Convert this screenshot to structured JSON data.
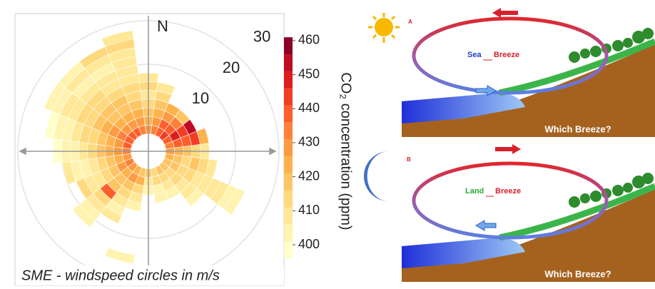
{
  "chart_data": {
    "type": "polar-heatmap",
    "north_label": "N",
    "caption": "SME - windspeed circles in m/s",
    "colorbar_label": "CO₂ concentration (ppm)",
    "rticks": [
      10,
      20,
      30
    ],
    "clim": [
      396,
      461
    ],
    "cticks": [
      400,
      410,
      420,
      430,
      440,
      450,
      460
    ],
    "colors": [
      "#ffffcc",
      "#fff3b0",
      "#ffe897",
      "#fed97e",
      "#fec565",
      "#feb24c",
      "#fd9a42",
      "#fd8138",
      "#fc5e2c",
      "#f23d23",
      "#dd1e1f",
      "#c00b24",
      "#8c0026"
    ],
    "directions": [
      0,
      15,
      30,
      45,
      60,
      75,
      90,
      105,
      120,
      135,
      150,
      165,
      180,
      195,
      210,
      225,
      240,
      255,
      270,
      285,
      300,
      315,
      330,
      345
    ],
    "r_bins": [
      4,
      6,
      8,
      10,
      12,
      14,
      16,
      18,
      20,
      22,
      24,
      26,
      28
    ],
    "values": [
      [
        430,
        425,
        420,
        415,
        410,
        412,
        408,
        null,
        null,
        null,
        null,
        null
      ],
      [
        435,
        430,
        425,
        420,
        415,
        410,
        null,
        null,
        null,
        null,
        null,
        null
      ],
      [
        440,
        438,
        430,
        425,
        null,
        null,
        null,
        null,
        null,
        null,
        null,
        null
      ],
      [
        445,
        440,
        432,
        420,
        null,
        null,
        null,
        null,
        null,
        null,
        null,
        null
      ],
      [
        440,
        448,
        445,
        452,
        null,
        null,
        null,
        null,
        null,
        null,
        null,
        null
      ],
      [
        435,
        440,
        438,
        445,
        425,
        null,
        null,
        null,
        null,
        null,
        null,
        null
      ],
      [
        430,
        425,
        420,
        415,
        410,
        null,
        null,
        null,
        null,
        null,
        null,
        null
      ],
      [
        425,
        420,
        415,
        418,
        412,
        410,
        null,
        null,
        null,
        null,
        null,
        null
      ],
      [
        420,
        418,
        415,
        412,
        410,
        408,
        406,
        410,
        404,
        402,
        null,
        null
      ],
      [
        418,
        415,
        412,
        410,
        408,
        405,
        null,
        null,
        null,
        null,
        null,
        null
      ],
      [
        420,
        415,
        410,
        405,
        null,
        null,
        null,
        null,
        null,
        null,
        null,
        null
      ],
      [
        415,
        412,
        405,
        402,
        null,
        null,
        null,
        null,
        null,
        null,
        null,
        null
      ],
      [
        418,
        410,
        405,
        null,
        null,
        null,
        null,
        null,
        null,
        null,
        null,
        null
      ],
      [
        420,
        425,
        415,
        410,
        405,
        null,
        null,
        null,
        null,
        null,
        405,
        null
      ],
      [
        425,
        430,
        420,
        415,
        410,
        405,
        408,
        null,
        null,
        null,
        null,
        null
      ],
      [
        430,
        425,
        420,
        418,
        438,
        412,
        410,
        405,
        402,
        null,
        null,
        null
      ],
      [
        432,
        428,
        420,
        415,
        410,
        408,
        412,
        null,
        null,
        null,
        null,
        null
      ],
      [
        430,
        425,
        420,
        415,
        410,
        405,
        402,
        408,
        null,
        null,
        null,
        null
      ],
      [
        435,
        428,
        422,
        418,
        412,
        410,
        405,
        402,
        400,
        null,
        null,
        null
      ],
      [
        438,
        430,
        425,
        420,
        415,
        412,
        410,
        405,
        402,
        400,
        null,
        null
      ],
      [
        440,
        432,
        428,
        422,
        418,
        415,
        412,
        410,
        406,
        404,
        402,
        null
      ],
      [
        438,
        430,
        425,
        420,
        418,
        415,
        412,
        408,
        405,
        410,
        404,
        null
      ],
      [
        436,
        428,
        424,
        420,
        416,
        414,
        410,
        406,
        404,
        408,
        412,
        null
      ],
      [
        432,
        426,
        422,
        418,
        415,
        412,
        410,
        408,
        406,
        410,
        412,
        408
      ]
    ]
  },
  "diagrams": [
    {
      "letter": "A",
      "wind_word": "Sea",
      "breeze": "Breeze",
      "question": "Which Breeze?"
    },
    {
      "letter": "B",
      "wind_word": "Land",
      "breeze": "Breeze",
      "question": "Which Breeze?"
    }
  ]
}
